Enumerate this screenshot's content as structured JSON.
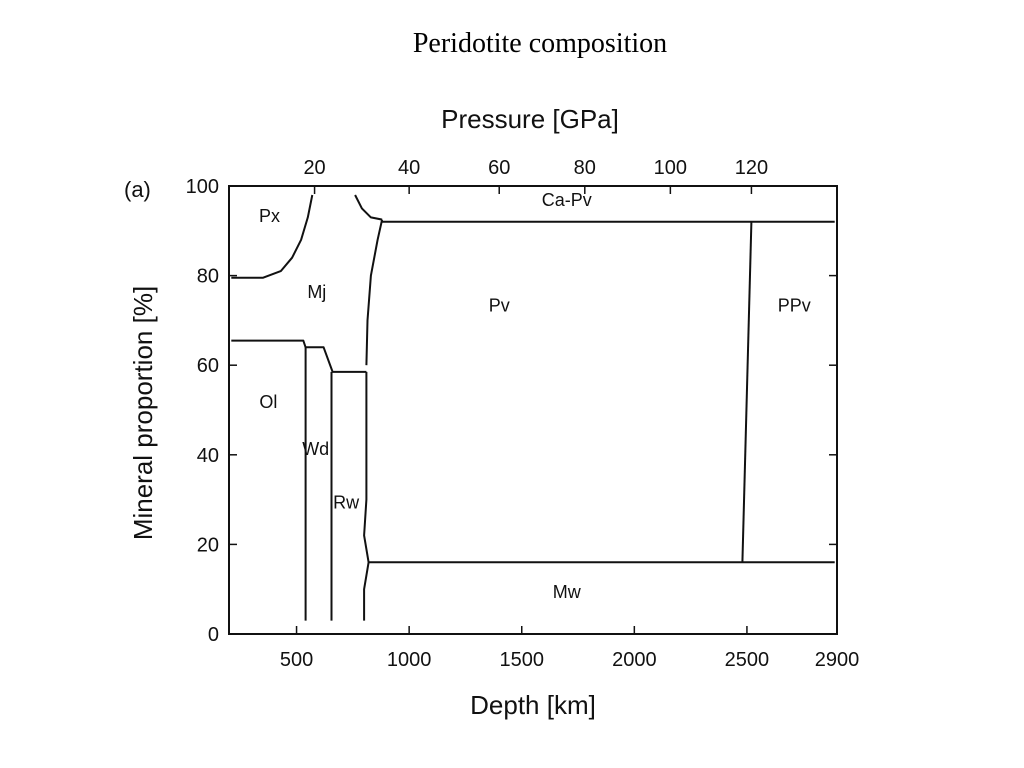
{
  "slide": {
    "title": "Peridotite composition"
  },
  "chart_data": {
    "type": "area",
    "title": "",
    "panel_label": "(a)",
    "xlabel": "Depth [km]",
    "xlim": [
      200,
      2900
    ],
    "x_ticks": [
      500,
      1000,
      1500,
      2000,
      2500,
      2900
    ],
    "ylabel": "Mineral proportion [%]",
    "ylim": [
      0,
      100
    ],
    "y_ticks": [
      0,
      20,
      40,
      60,
      80,
      100
    ],
    "top_axis": {
      "label": "Pressure [GPa]",
      "ticks": [
        {
          "label": "20",
          "depth": 580
        },
        {
          "label": "40",
          "depth": 1000
        },
        {
          "label": "60",
          "depth": 1400
        },
        {
          "label": "80",
          "depth": 1780
        },
        {
          "label": "100",
          "depth": 2160
        },
        {
          "label": "120",
          "depth": 2520
        }
      ]
    },
    "grid": false,
    "legend": "none",
    "boundaries": [
      {
        "name": "Px-Mj",
        "points": [
          [
            210,
            79.5
          ],
          [
            350,
            79.5
          ],
          [
            430,
            81
          ],
          [
            480,
            84
          ],
          [
            520,
            88
          ],
          [
            550,
            93
          ],
          [
            570,
            98
          ]
        ]
      },
      {
        "name": "Mj-CaPv",
        "points": [
          [
            760,
            98
          ],
          [
            790,
            95
          ],
          [
            830,
            93
          ],
          [
            880,
            92.5
          ]
        ]
      },
      {
        "name": "Mj-Pv",
        "points": [
          [
            810,
            60
          ],
          [
            815,
            70
          ],
          [
            830,
            80
          ],
          [
            860,
            88
          ],
          [
            880,
            92.5
          ]
        ]
      },
      {
        "name": "CaPv-Pv",
        "points": [
          [
            880,
            92
          ],
          [
            2890,
            92
          ]
        ]
      },
      {
        "name": "Pv-PPv",
        "points": [
          [
            2520,
            92
          ],
          [
            2480,
            16
          ]
        ]
      },
      {
        "name": "Ol-Mj",
        "points": [
          [
            210,
            65.5
          ],
          [
            530,
            65.5
          ],
          [
            540,
            64
          ],
          [
            620,
            64
          ],
          [
            660,
            58.5
          ],
          [
            810,
            58.5
          ]
        ]
      },
      {
        "name": "Ol-Wd",
        "points": [
          [
            540,
            64
          ],
          [
            540,
            3
          ]
        ]
      },
      {
        "name": "Wd-Rw",
        "points": [
          [
            655,
            58.5
          ],
          [
            655,
            3
          ]
        ]
      },
      {
        "name": "Rw-Pv",
        "points": [
          [
            810,
            58.5
          ],
          [
            810,
            30
          ],
          [
            800,
            22
          ],
          [
            820,
            16
          ],
          [
            800,
            10
          ],
          [
            800,
            3
          ]
        ]
      },
      {
        "name": "Pv-Mw",
        "points": [
          [
            820,
            16
          ],
          [
            2890,
            16
          ]
        ]
      }
    ],
    "regions": [
      {
        "label": "Px",
        "x": 380,
        "y": 92
      },
      {
        "label": "Mj",
        "x": 590,
        "y": 75
      },
      {
        "label": "Ca-Pv",
        "x": 1700,
        "y": 95.5
      },
      {
        "label": "Pv",
        "x": 1400,
        "y": 72
      },
      {
        "label": "PPv",
        "x": 2710,
        "y": 72
      },
      {
        "label": "Ol",
        "x": 375,
        "y": 50.5
      },
      {
        "label": "Wd",
        "x": 585,
        "y": 40
      },
      {
        "label": "Rw",
        "x": 720,
        "y": 28
      },
      {
        "label": "Mw",
        "x": 1700,
        "y": 8
      }
    ]
  }
}
